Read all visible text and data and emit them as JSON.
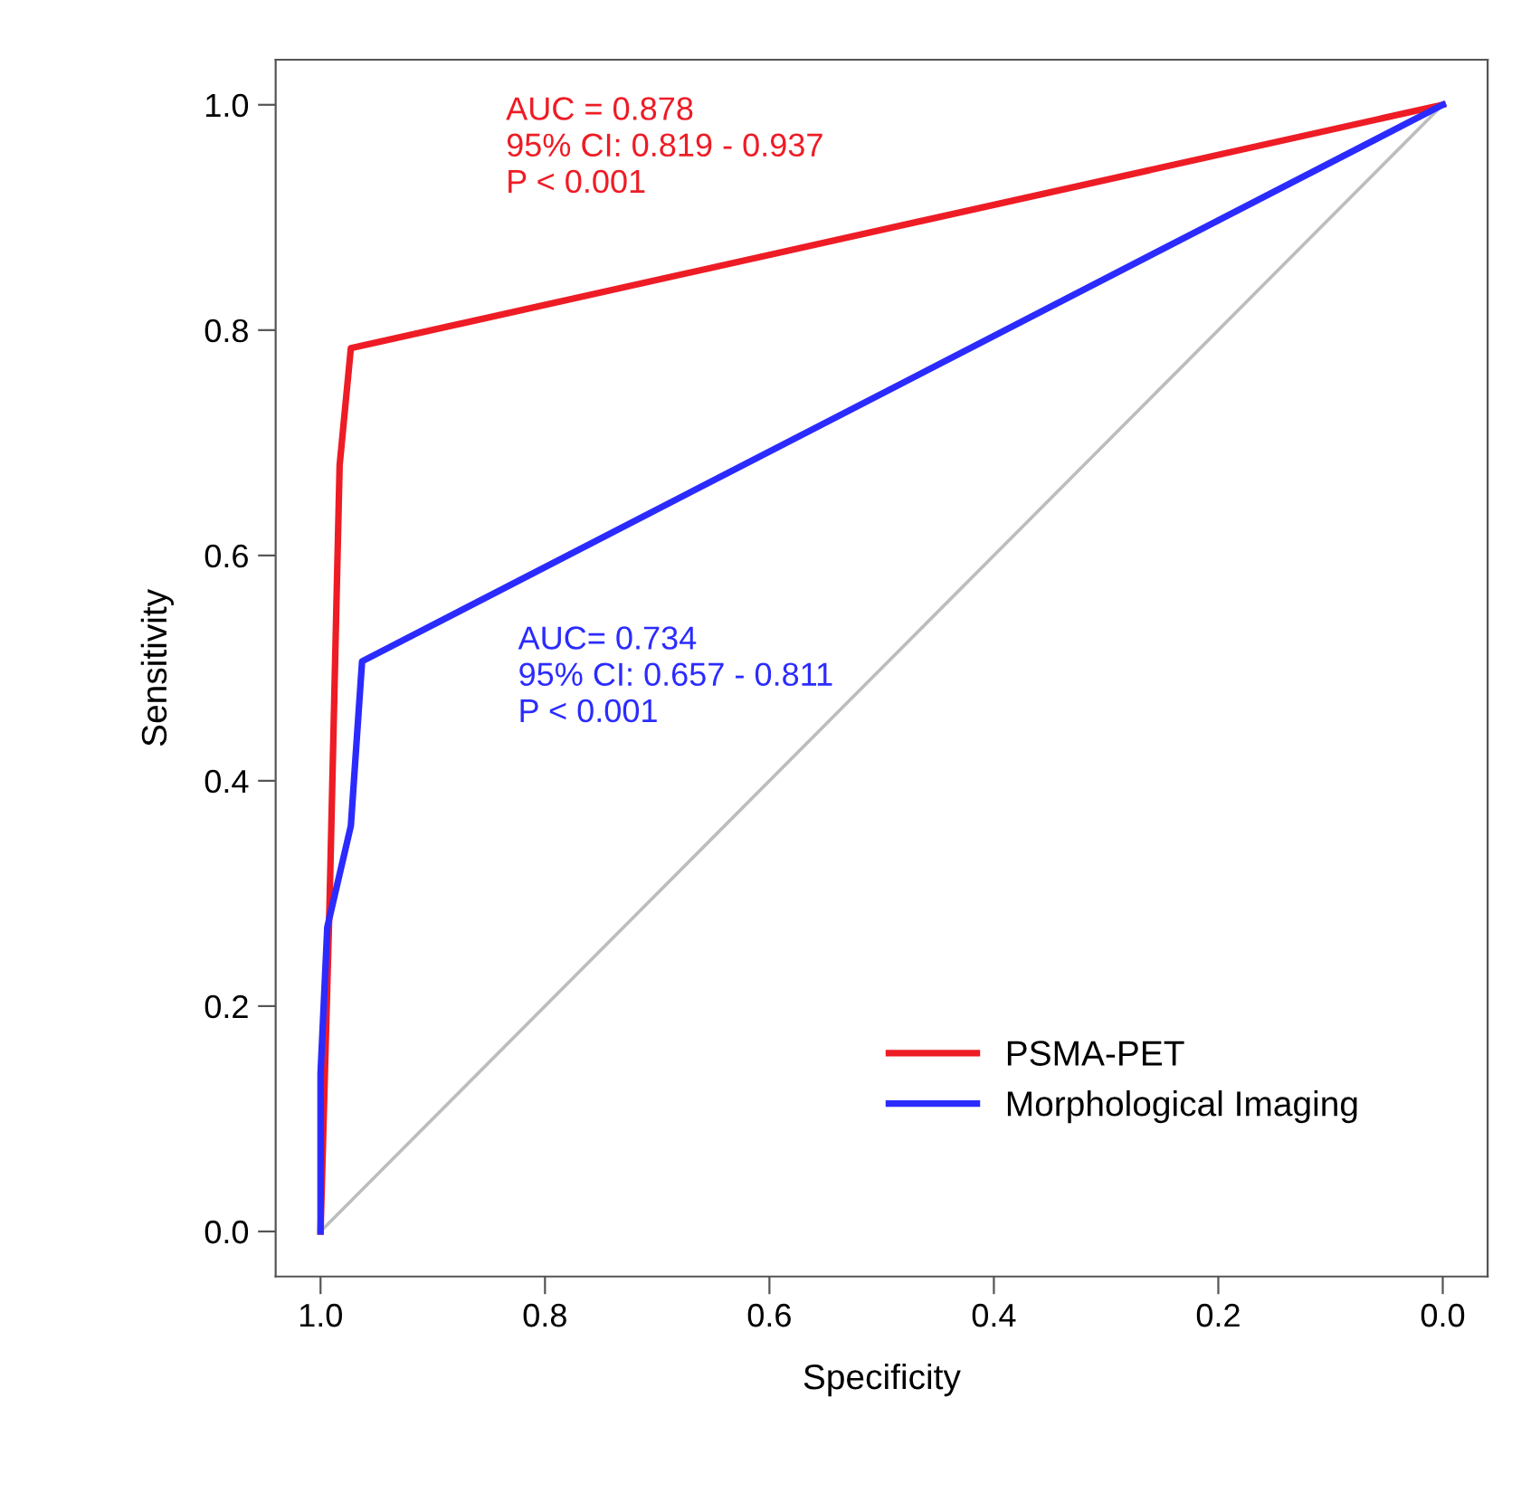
{
  "chart_data": {
    "type": "line",
    "xlabel": "Specificity",
    "ylabel": "Sensitivity",
    "xlim": [
      1.04,
      -0.04
    ],
    "ylim": [
      -0.04,
      1.04
    ],
    "xticks": [
      {
        "value": 1.0,
        "label": "1.0"
      },
      {
        "value": 0.8,
        "label": "0.8"
      },
      {
        "value": 0.6,
        "label": "0.6"
      },
      {
        "value": 0.4,
        "label": "0.4"
      },
      {
        "value": 0.2,
        "label": "0.2"
      },
      {
        "value": 0.0,
        "label": "0.0"
      }
    ],
    "yticks": [
      {
        "value": 0.0,
        "label": "0.0"
      },
      {
        "value": 0.2,
        "label": "0.2"
      },
      {
        "value": 0.4,
        "label": "0.4"
      },
      {
        "value": 0.6,
        "label": "0.6"
      },
      {
        "value": 0.8,
        "label": "0.8"
      },
      {
        "value": 1.0,
        "label": "1.0"
      }
    ],
    "grid": false,
    "legend": "bottom right",
    "marker": "none",
    "line_style": "solid",
    "series": [
      {
        "name": "PSMA-PET",
        "color": "#ee1c25",
        "x": [
          1.0,
          0.992,
          0.983,
          0.973,
          0.0
        ],
        "values": [
          0.0,
          0.29,
          0.68,
          0.784,
          1.0
        ]
      },
      {
        "name": "Morphological Imaging",
        "color": "#2b2bff",
        "x": [
          1.0,
          1.0,
          0.994,
          0.973,
          0.963,
          0.0
        ],
        "values": [
          0.0,
          0.14,
          0.27,
          0.36,
          0.506,
          1.0
        ]
      },
      {
        "color": "#bdbdbd",
        "x": [
          1.0,
          0.0
        ],
        "values": [
          0.0,
          1.0
        ]
      }
    ],
    "annotations": [
      "AUC = 0.878\n95% CI: 0.819 - 0.937\nP < 0.001",
      "AUC= 0.734\n95% CI: 0.657 - 0.811\nP < 0.001"
    ]
  }
}
